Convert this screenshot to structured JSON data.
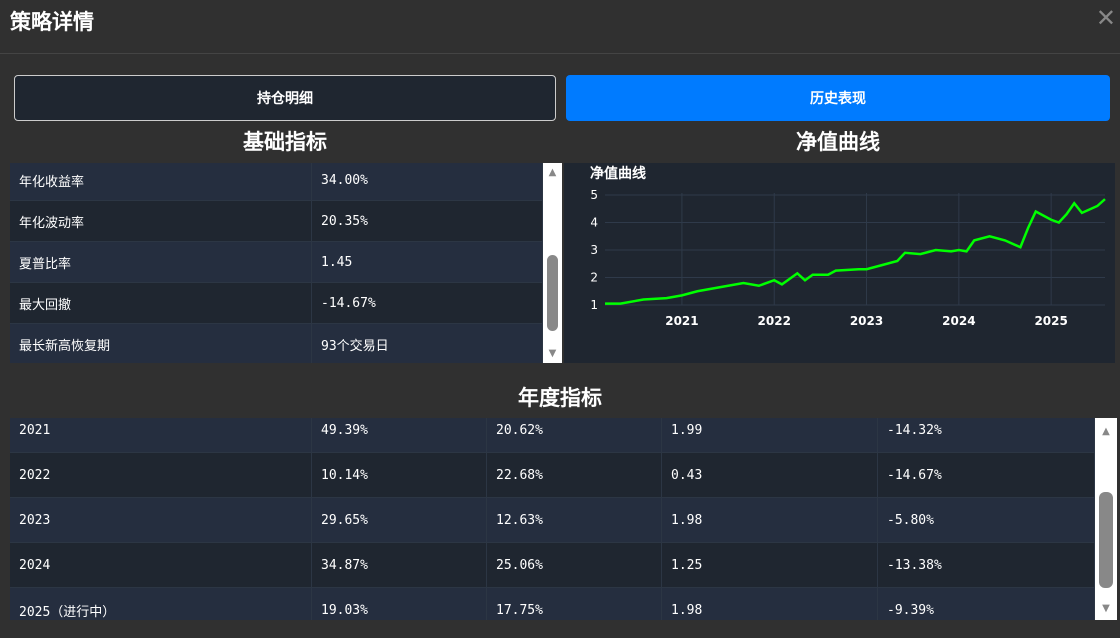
{
  "header": {
    "title": "策略详情",
    "close_icon": "close-icon"
  },
  "tabs": [
    {
      "label": "持仓明细",
      "active": false
    },
    {
      "label": "历史表现",
      "active": true
    }
  ],
  "accent": "#007bff",
  "basic": {
    "title": "基础指标",
    "rows": [
      [
        "年化收益率",
        "34.00%"
      ],
      [
        "年化波动率",
        "20.35%"
      ],
      [
        "夏普比率",
        "1.45"
      ],
      [
        "最大回撤",
        "-14.67%"
      ],
      [
        "最长新高恢复期",
        "93个交易日"
      ]
    ]
  },
  "nav": {
    "title": "净值曲线"
  },
  "chart_data": {
    "type": "line",
    "title": "净值曲线",
    "line_color": "#00ff00",
    "grid": true,
    "ylim": [
      1,
      5
    ],
    "yticks": [
      1,
      2,
      3,
      4,
      5
    ],
    "xticks": [
      "2021",
      "2022",
      "2023",
      "2024",
      "2025"
    ],
    "xlim": [
      "2020-03",
      "2025-08"
    ],
    "points": [
      [
        "2020-03",
        1.05
      ],
      [
        "2020-05",
        1.05
      ],
      [
        "2020-08",
        1.2
      ],
      [
        "2020-11",
        1.25
      ],
      [
        "2021-01",
        1.35
      ],
      [
        "2021-03",
        1.5
      ],
      [
        "2021-06",
        1.65
      ],
      [
        "2021-09",
        1.8
      ],
      [
        "2021-11",
        1.7
      ],
      [
        "2022-01",
        1.9
      ],
      [
        "2022-02",
        1.75
      ],
      [
        "2022-04",
        2.15
      ],
      [
        "2022-05",
        1.9
      ],
      [
        "2022-06",
        2.1
      ],
      [
        "2022-08",
        2.1
      ],
      [
        "2022-09",
        2.25
      ],
      [
        "2022-12",
        2.3
      ],
      [
        "2023-01",
        2.3
      ],
      [
        "2023-03",
        2.45
      ],
      [
        "2023-05",
        2.6
      ],
      [
        "2023-06",
        2.9
      ],
      [
        "2023-08",
        2.85
      ],
      [
        "2023-10",
        3.0
      ],
      [
        "2023-12",
        2.95
      ],
      [
        "2024-01",
        3.0
      ],
      [
        "2024-02",
        2.95
      ],
      [
        "2024-03",
        3.35
      ],
      [
        "2024-05",
        3.5
      ],
      [
        "2024-07",
        3.35
      ],
      [
        "2024-09",
        3.1
      ],
      [
        "2024-10",
        3.8
      ],
      [
        "2024-11",
        4.4
      ],
      [
        "2025-01",
        4.1
      ],
      [
        "2025-02",
        4.0
      ],
      [
        "2025-03",
        4.3
      ],
      [
        "2025-04",
        4.7
      ],
      [
        "2025-05",
        4.35
      ],
      [
        "2025-07",
        4.6
      ],
      [
        "2025-08",
        4.85
      ]
    ]
  },
  "annual": {
    "title": "年度指标",
    "rows": [
      [
        "2021",
        "49.39%",
        "20.62%",
        "1.99",
        "-14.32%"
      ],
      [
        "2022",
        "10.14%",
        "22.68%",
        "0.43",
        "-14.67%"
      ],
      [
        "2023",
        "29.65%",
        "12.63%",
        "1.98",
        "-5.80%"
      ],
      [
        "2024",
        "34.87%",
        "25.06%",
        "1.25",
        "-13.38%"
      ],
      [
        "2025（进行中）",
        "19.03%",
        "17.75%",
        "1.98",
        "-9.39%"
      ]
    ]
  }
}
